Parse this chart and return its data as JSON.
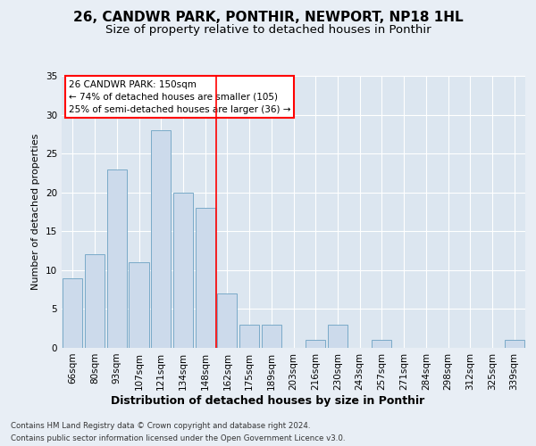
{
  "title1": "26, CANDWR PARK, PONTHIR, NEWPORT, NP18 1HL",
  "title2": "Size of property relative to detached houses in Ponthir",
  "xlabel": "Distribution of detached houses by size in Ponthir",
  "ylabel": "Number of detached properties",
  "categories": [
    "66sqm",
    "80sqm",
    "93sqm",
    "107sqm",
    "121sqm",
    "134sqm",
    "148sqm",
    "162sqm",
    "175sqm",
    "189sqm",
    "203sqm",
    "216sqm",
    "230sqm",
    "243sqm",
    "257sqm",
    "271sqm",
    "284sqm",
    "298sqm",
    "312sqm",
    "325sqm",
    "339sqm"
  ],
  "values": [
    9,
    12,
    23,
    11,
    28,
    20,
    18,
    7,
    3,
    3,
    0,
    1,
    3,
    0,
    1,
    0,
    0,
    0,
    0,
    0,
    1
  ],
  "bar_color": "#ccdaeb",
  "bar_edge_color": "#7aaac8",
  "vline_x": 6.5,
  "annotation_line1": "26 CANDWR PARK: 150sqm",
  "annotation_line2": "← 74% of detached houses are smaller (105)",
  "annotation_line3": "25% of semi-detached houses are larger (36) →",
  "ylim": [
    0,
    35
  ],
  "yticks": [
    0,
    5,
    10,
    15,
    20,
    25,
    30,
    35
  ],
  "bg_color": "#e8eef5",
  "plot_bg_color": "#dce6f0",
  "footnote1": "Contains HM Land Registry data © Crown copyright and database right 2024.",
  "footnote2": "Contains public sector information licensed under the Open Government Licence v3.0.",
  "title1_fontsize": 11,
  "title2_fontsize": 9.5,
  "xlabel_fontsize": 9,
  "ylabel_fontsize": 8,
  "tick_fontsize": 7.5,
  "annot_fontsize": 7.5
}
